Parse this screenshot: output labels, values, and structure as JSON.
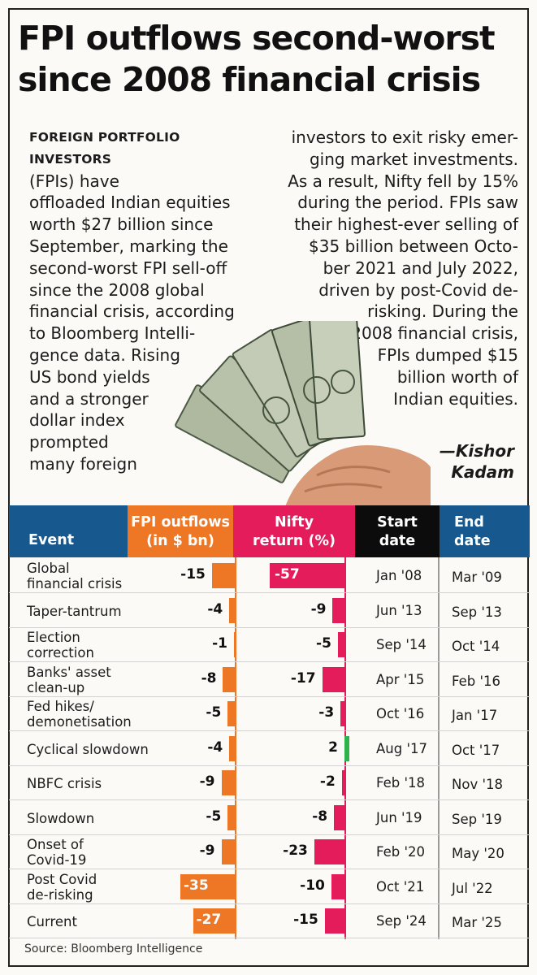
{
  "headline": {
    "line1": "FPI outflows second-worst",
    "line2": "since 2008 financial crisis"
  },
  "body": {
    "lead": "FOREIGN PORTFOLIO INVESTORS",
    "left_lines": [
      "(FPIs) have",
      "offloaded Indian equities",
      "worth $27 billion since",
      "September, marking the",
      "second-worst FPI sell-off",
      "since the 2008 global",
      "financial crisis, according",
      "to Bloomberg Intelli-",
      "gence data. Rising",
      "US bond yields",
      "and a stronger",
      "dollar index",
      "prompted",
      "many foreign"
    ],
    "right_lines": [
      "investors to exit risky emer-",
      "ging market investments.",
      "As a result, Nifty fell by 15%",
      "during the period. FPIs saw",
      "their highest-ever selling of",
      "$35 billion between Octo-",
      "ber 2021 and July 2022,",
      "driven by post-Covid de-",
      "risking. During the",
      "2008 financial crisis,",
      "FPIs dumped $15",
      "billion worth of",
      "Indian equities."
    ],
    "byline1": "—Kishor",
    "byline2": "Kadam"
  },
  "colors": {
    "header_blue": "#17588e",
    "fpi_orange": "#ee7726",
    "nifty_pink": "#e41c5c",
    "nifty_positive_green": "#2db34a"
  },
  "table_header": {
    "event": "Event",
    "fpi_line1": "FPI outflows",
    "fpi_line2": "(in $ bn)",
    "nifty_line1": "Nifty",
    "nifty_line2": "return (%)",
    "start_line1": "Start",
    "start_line2": "date",
    "end_line1": "End",
    "end_line2": "date"
  },
  "chart_data": {
    "type": "table",
    "columns": [
      "Event",
      "FPI outflows (in $ bn)",
      "Nifty return (%)",
      "Start date",
      "End date"
    ],
    "rows": [
      {
        "event": [
          "Global",
          "financial crisis"
        ],
        "fpi": -15,
        "nifty": -57,
        "start": "Jan '08",
        "end": "Mar '09"
      },
      {
        "event": [
          "Taper-tantrum"
        ],
        "fpi": -4,
        "nifty": -9,
        "start": "Jun '13",
        "end": "Sep '13"
      },
      {
        "event": [
          "Election",
          "correction"
        ],
        "fpi": -1,
        "nifty": -5,
        "start": "Sep '14",
        "end": "Oct '14"
      },
      {
        "event": [
          "Banks' asset",
          "clean-up"
        ],
        "fpi": -8,
        "nifty": -17,
        "start": "Apr '15",
        "end": "Feb '16"
      },
      {
        "event": [
          "Fed hikes/",
          "demonetisation"
        ],
        "fpi": -5,
        "nifty": -3,
        "start": "Oct '16",
        "end": "Jan '17"
      },
      {
        "event": [
          "Cyclical slowdown"
        ],
        "fpi": -4,
        "nifty": 2,
        "start": "Aug '17",
        "end": "Oct '17"
      },
      {
        "event": [
          "NBFC crisis"
        ],
        "fpi": -9,
        "nifty": -2,
        "start": "Feb '18",
        "end": "Nov '18"
      },
      {
        "event": [
          "Slowdown"
        ],
        "fpi": -5,
        "nifty": -8,
        "start": "Jun '19",
        "end": "Sep '19"
      },
      {
        "event": [
          "Onset of",
          "Covid-19"
        ],
        "fpi": -9,
        "nifty": -23,
        "start": "Feb '20",
        "end": "May '20"
      },
      {
        "event": [
          "Post Covid",
          "de-risking"
        ],
        "fpi": -35,
        "nifty": -10,
        "start": "Oct '21",
        "end": "Jul '22"
      },
      {
        "event": [
          "Current"
        ],
        "fpi": -27,
        "nifty": -15,
        "start": "Sep '24",
        "end": "Mar '25"
      }
    ]
  },
  "source": "Source: Bloomberg Intelligence"
}
